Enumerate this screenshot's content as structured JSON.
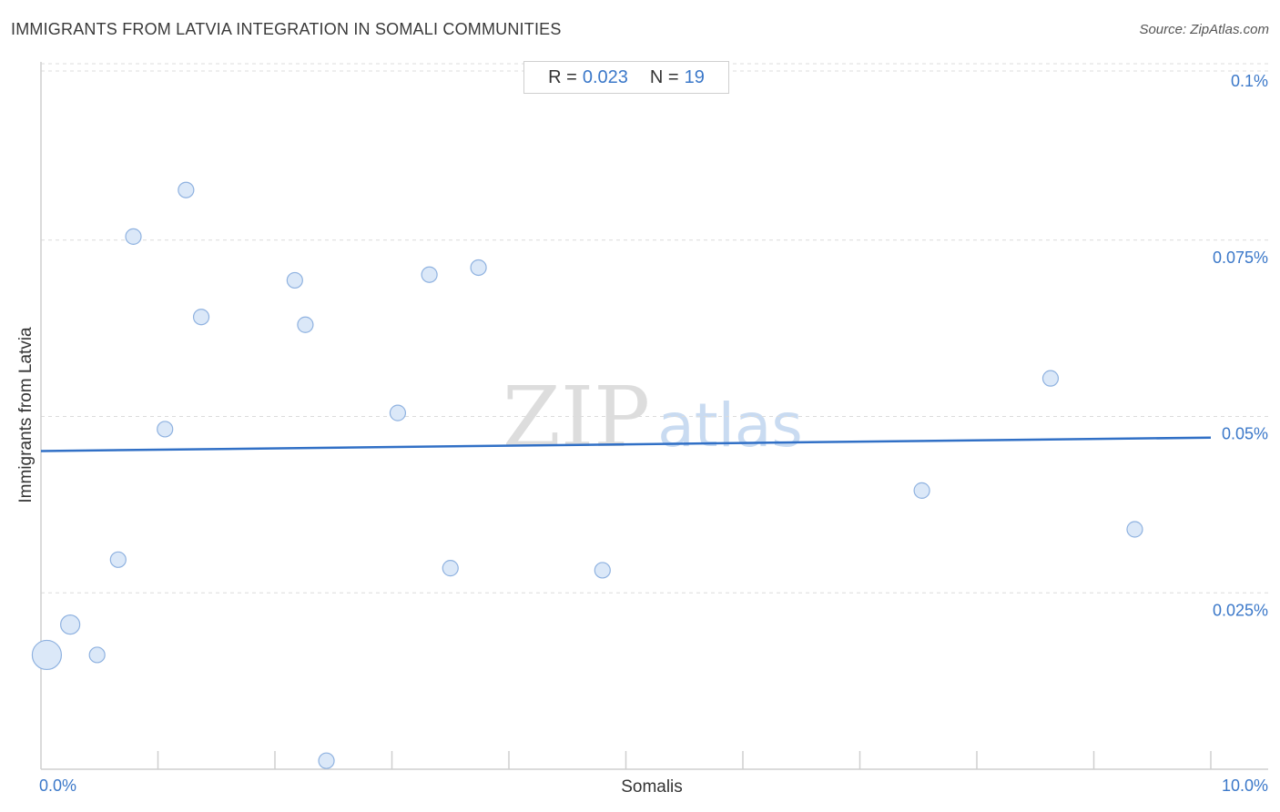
{
  "title": "IMMIGRANTS FROM LATVIA INTEGRATION IN SOMALI COMMUNITIES",
  "source": "Source: ZipAtlas.com",
  "stats": {
    "r_label": "R =",
    "r_value": "0.023",
    "n_label": "N =",
    "n_value": "19"
  },
  "watermark": {
    "zip": "ZIP",
    "atlas": "atlas"
  },
  "colors": {
    "accent": "#3b78c9",
    "point_fill": "#dbe8f8",
    "point_stroke": "#8fb2e0",
    "trend": "#3170c6"
  },
  "chart_data": {
    "type": "scatter",
    "title": "IMMIGRANTS FROM LATVIA INTEGRATION IN SOMALI COMMUNITIES",
    "xlabel": "Somalis",
    "ylabel": "Immigrants from Latvia",
    "xlim": [
      0,
      10
    ],
    "ylim": [
      0,
      0.1
    ],
    "x_tick_labels": [
      "0.0%",
      "10.0%"
    ],
    "y_ticks": [
      {
        "value": 0.1,
        "label": "0.1%"
      },
      {
        "value": 0.075,
        "label": "0.075%"
      },
      {
        "value": 0.05,
        "label": "0.05%"
      },
      {
        "value": 0.025,
        "label": "0.025%"
      }
    ],
    "grid": "horizontal-dashed",
    "points": [
      {
        "x": 0.05,
        "y": 0.0162,
        "size": "large"
      },
      {
        "x": 0.25,
        "y": 0.0205,
        "size": "medium"
      },
      {
        "x": 0.48,
        "y": 0.0162,
        "size": "small"
      },
      {
        "x": 0.66,
        "y": 0.0297,
        "size": "small"
      },
      {
        "x": 0.79,
        "y": 0.0755,
        "size": "small"
      },
      {
        "x": 1.06,
        "y": 0.0482,
        "size": "small"
      },
      {
        "x": 1.24,
        "y": 0.0821,
        "size": "small"
      },
      {
        "x": 1.37,
        "y": 0.0641,
        "size": "small"
      },
      {
        "x": 2.17,
        "y": 0.0693,
        "size": "small"
      },
      {
        "x": 2.26,
        "y": 0.063,
        "size": "small"
      },
      {
        "x": 2.44,
        "y": 0.0012,
        "size": "small"
      },
      {
        "x": 3.05,
        "y": 0.0505,
        "size": "small"
      },
      {
        "x": 3.32,
        "y": 0.0701,
        "size": "small"
      },
      {
        "x": 3.5,
        "y": 0.0285,
        "size": "small"
      },
      {
        "x": 3.74,
        "y": 0.0711,
        "size": "small"
      },
      {
        "x": 4.8,
        "y": 0.0282,
        "size": "small"
      },
      {
        "x": 7.53,
        "y": 0.0395,
        "size": "small"
      },
      {
        "x": 8.63,
        "y": 0.0554,
        "size": "small"
      },
      {
        "x": 9.35,
        "y": 0.034,
        "size": "small"
      }
    ],
    "trendline": {
      "x": [
        0,
        10
      ],
      "y": [
        0.0451,
        0.047
      ]
    }
  }
}
